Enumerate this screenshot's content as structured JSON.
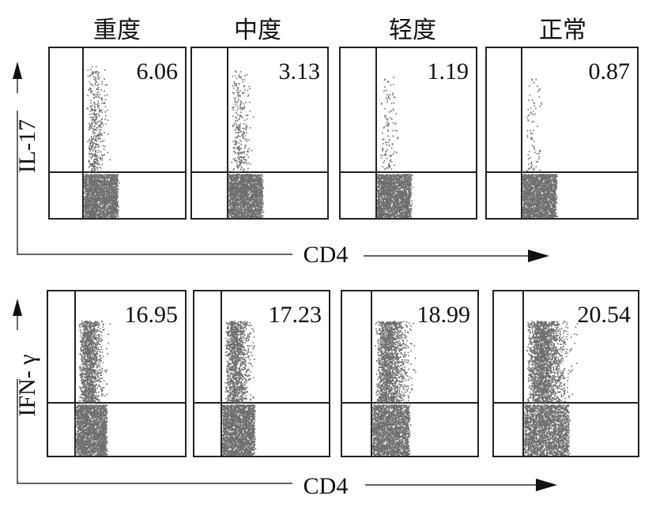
{
  "columns": [
    "重度",
    "中度",
    "轻度",
    "正常"
  ],
  "rows": [
    {
      "y_label": "IL-17",
      "x_label": "CD4",
      "values": [
        "6.06",
        "3.13",
        "1.19",
        "0.87"
      ]
    },
    {
      "y_label": "IFN- γ",
      "x_label": "CD4",
      "values": [
        "16.95",
        "17.23",
        "18.99",
        "20.54"
      ]
    }
  ]
}
